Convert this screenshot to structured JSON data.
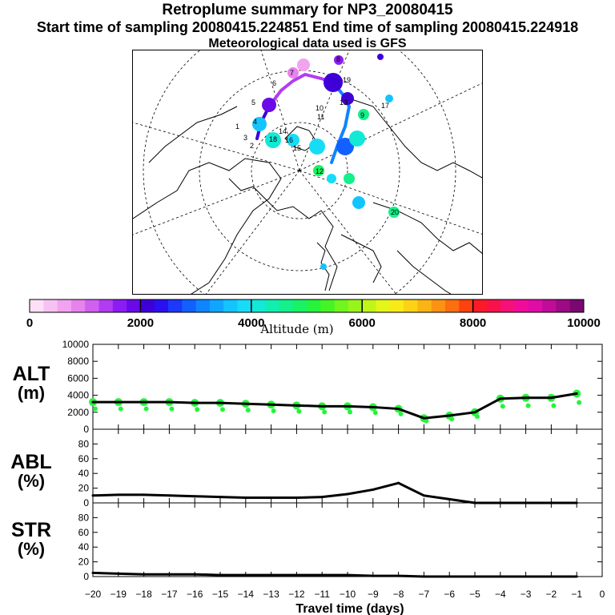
{
  "header": {
    "title": "Retroplume summary for NP3_20080415",
    "subtitle": "Start time of sampling 20080415.224851     End time of sampling 20080415.224918",
    "met_line": "Meteorological data used is GFS"
  },
  "colorbar": {
    "label": "Altitude (m)",
    "ticks": [
      "0",
      "2000",
      "4000",
      "6000",
      "8000",
      "10000"
    ],
    "colors": [
      "#fde0f8",
      "#f7c2f3",
      "#f2a3ef",
      "#e683ec",
      "#d060f0",
      "#b23cf2",
      "#8c1cf4",
      "#6a0ae8",
      "#3f00d8",
      "#2a10f0",
      "#1c38f8",
      "#1260ff",
      "#0e85ff",
      "#10a6ff",
      "#14c4ff",
      "#17dcf7",
      "#14e8d6",
      "#12eeb0",
      "#14f08a",
      "#18f264",
      "#25f33c",
      "#45f424",
      "#70f51e",
      "#98f51c",
      "#c0f51a",
      "#e4f51a",
      "#f8ea18",
      "#fcd216",
      "#fcb414",
      "#fc9212",
      "#fc6e10",
      "#fc420e",
      "#fc1a28",
      "#f8124c",
      "#f6107a",
      "#f00c9a",
      "#e00ca6",
      "#c00c98",
      "#9c0a84",
      "#7a0870"
    ]
  },
  "map_labels": [
    {
      "text": "10",
      "color": "#000"
    },
    {
      "text": "11",
      "color": "#000"
    },
    {
      "text": "12",
      "color": "#000"
    },
    {
      "text": "13",
      "color": "#000"
    },
    {
      "text": "14",
      "color": "#000"
    },
    {
      "text": "15",
      "color": "#000"
    },
    {
      "text": "16",
      "color": "#000"
    },
    {
      "text": "17",
      "color": "#000"
    },
    {
      "text": "18",
      "color": "#000"
    },
    {
      "text": "19",
      "color": "#000"
    },
    {
      "text": "20",
      "color": "#000"
    },
    {
      "text": "9",
      "color": "#000"
    },
    {
      "text": "8",
      "color": "#000"
    },
    {
      "text": "7",
      "color": "#000"
    },
    {
      "text": "6",
      "color": "#000"
    },
    {
      "text": "5",
      "color": "#000"
    },
    {
      "text": "4",
      "color": "#000"
    },
    {
      "text": "3",
      "color": "#000"
    },
    {
      "text": "2",
      "color": "#000"
    },
    {
      "text": "1",
      "color": "#000"
    }
  ],
  "panels": {
    "alt": {
      "label": "ALT",
      "unit": "(m)"
    },
    "abl": {
      "label": "ABL",
      "unit": "(%)"
    },
    "str": {
      "label": "STR",
      "unit": "(%)"
    }
  },
  "chart_data": [
    {
      "type": "line",
      "panel": "ALT",
      "ylabel": "ALT (m)",
      "ylim": [
        0,
        10000
      ],
      "yticks": [
        "0",
        "2000",
        "4000",
        "6000",
        "8000",
        "10000"
      ],
      "x": [
        -20,
        -19,
        -18,
        -17,
        -16,
        -15,
        -14,
        -13,
        -12,
        -11,
        -10,
        -9,
        -8,
        -7,
        -6,
        -5,
        -4,
        -3,
        -2,
        -1
      ],
      "values": [
        3200,
        3200,
        3200,
        3200,
        3100,
        3100,
        3000,
        2900,
        2800,
        2700,
        2700,
        2600,
        2400,
        1300,
        1600,
        2000,
        3600,
        3700,
        3700,
        4200
      ],
      "scatter_color": "#25f33c"
    },
    {
      "type": "line",
      "panel": "ABL",
      "ylabel": "ABL (%)",
      "ylim": [
        0,
        100
      ],
      "yticks": [
        "0",
        "20",
        "40",
        "60",
        "80"
      ],
      "x": [
        -20,
        -19,
        -18,
        -17,
        -16,
        -15,
        -14,
        -13,
        -12,
        -11,
        -10,
        -9,
        -8,
        -7,
        -6,
        -5,
        -4,
        -3,
        -2,
        -1
      ],
      "values": [
        10,
        11,
        11,
        10,
        9,
        8,
        7,
        7,
        7,
        8,
        12,
        18,
        27,
        10,
        5,
        0,
        0,
        0,
        0,
        0
      ]
    },
    {
      "type": "line",
      "panel": "STR",
      "ylabel": "STR (%)",
      "ylim": [
        0,
        100
      ],
      "yticks": [
        "0",
        "20",
        "40",
        "60",
        "80"
      ],
      "xlabel": "Travel time (days)",
      "xticks": [
        "−20",
        "−19",
        "−18",
        "−17",
        "−16",
        "−15",
        "−14",
        "−13",
        "−12",
        "−11",
        "−10",
        "−9",
        "−8",
        "−7",
        "−6",
        "−5",
        "−4",
        "−3",
        "−2",
        "−1",
        "0"
      ],
      "x": [
        -20,
        -19,
        -18,
        -17,
        -16,
        -15,
        -14,
        -13,
        -12,
        -11,
        -10,
        -9,
        -8,
        -7,
        -6,
        -5,
        -4,
        -3,
        -2,
        -1
      ],
      "values": [
        5,
        4,
        3,
        3,
        3,
        2,
        2,
        2,
        2,
        2,
        2,
        1,
        1,
        0,
        0,
        0,
        0,
        0,
        0,
        0
      ]
    }
  ]
}
